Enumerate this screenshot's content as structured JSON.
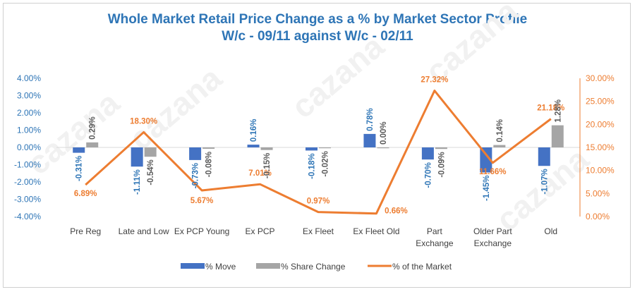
{
  "chart_data": {
    "type": "bar",
    "title": "Whole Market Retail Price Change as a % by Market Sector Profile",
    "subtitle": "W/c - 09/11 against W/c - 02/11",
    "categories": [
      [
        "Pre Reg"
      ],
      [
        "Late and Low"
      ],
      [
        "Ex PCP Young"
      ],
      [
        "Ex PCP"
      ],
      [
        "Ex Fleet"
      ],
      [
        "Ex Fleet Old"
      ],
      [
        "Part",
        "Exchange"
      ],
      [
        "Older Part",
        "Exchange"
      ],
      [
        "Old"
      ]
    ],
    "series": [
      {
        "name": "% Move",
        "type": "bar",
        "axis": "left",
        "color": "#4472c4",
        "values": [
          -0.31,
          -1.11,
          -0.73,
          0.16,
          -0.18,
          0.78,
          -0.7,
          -1.45,
          -1.07
        ],
        "labels": [
          "-0.31%",
          "-1.11%",
          "-0.73%",
          "0.16%",
          "-0.18%",
          "0.78%",
          "-0.70%",
          "-1.45%",
          "-1.07%"
        ]
      },
      {
        "name": "% Share Change",
        "type": "bar",
        "axis": "left",
        "color": "#a5a5a5",
        "values": [
          0.29,
          -0.54,
          -0.08,
          -0.15,
          -0.02,
          0.0,
          -0.09,
          0.14,
          1.28
        ],
        "labels": [
          "0.29%",
          "-0.54%",
          "-0.08%",
          "-0.15%",
          "-0.02%",
          "0.00%",
          "-0.09%",
          "0.14%",
          "1.28%"
        ]
      },
      {
        "name": "% of the Market",
        "type": "line",
        "axis": "right",
        "color": "#ed7d31",
        "values": [
          6.89,
          18.3,
          5.67,
          7.01,
          0.97,
          0.66,
          27.32,
          11.66,
          21.18
        ],
        "labels": [
          "6.89%",
          "18.30%",
          "5.67%",
          "7.01%",
          "0.97%",
          "0.66%",
          "27.32%",
          "11.66%",
          "21.18%"
        ]
      }
    ],
    "left_axis": {
      "min": -4,
      "max": 4,
      "ticks": [
        "4.00%",
        "3.00%",
        "2.00%",
        "1.00%",
        "0.00%",
        "-1.00%",
        "-2.00%",
        "-3.00%",
        "-4.00%"
      ],
      "color": "#2e75b6"
    },
    "right_axis": {
      "min": 0,
      "max": 30,
      "ticks": [
        "30.00%",
        "25.00%",
        "20.00%",
        "15.00%",
        "10.00%",
        "5.00%",
        "0.00%"
      ],
      "color": "#ed7d31"
    },
    "legend_position": "bottom",
    "grid": false
  },
  "watermark": "cazana"
}
